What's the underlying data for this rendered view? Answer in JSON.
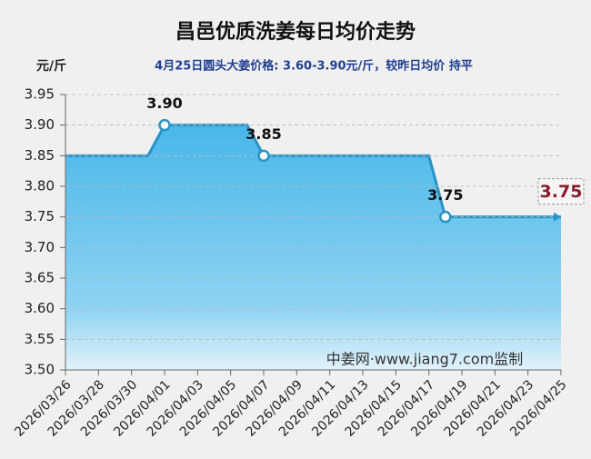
{
  "chart_data": {
    "type": "area",
    "title": "昌邑优质洗姜每日均价走势",
    "subtitle": "4月25日圆头大姜价格: 3.60-3.90元/斤，较昨日均价 持平",
    "y_label": "元/斤",
    "annotation": "中姜网·www.jiang7.com监制",
    "categories": [
      "2026/03/26",
      null,
      "2026/03/28",
      null,
      "2026/03/30",
      null,
      "2026/04/01",
      null,
      "2026/04/03",
      null,
      "2026/04/05",
      null,
      "2026/04/07",
      null,
      "2026/04/09",
      null,
      "2026/04/11",
      null,
      "2026/04/13",
      null,
      "2026/04/15",
      null,
      "2026/04/17",
      null,
      "2026/04/19",
      null,
      "2026/04/21",
      null,
      "2026/04/23",
      null,
      "2026/04/25"
    ],
    "values": [
      3.85,
      3.85,
      3.85,
      3.85,
      3.85,
      3.85,
      3.9,
      3.9,
      3.9,
      3.9,
      3.9,
      3.9,
      3.85,
      3.85,
      3.85,
      3.85,
      3.85,
      3.85,
      3.85,
      3.85,
      3.85,
      3.85,
      3.85,
      3.75,
      3.75,
      3.75,
      3.75,
      3.75,
      3.75,
      3.75,
      3.75
    ],
    "value_labels": [
      null,
      null,
      null,
      null,
      null,
      null,
      "3.90",
      null,
      null,
      null,
      null,
      null,
      "3.85",
      null,
      null,
      null,
      null,
      null,
      null,
      null,
      null,
      null,
      null,
      "3.75",
      null,
      null,
      null,
      null,
      null,
      null,
      "3.75"
    ],
    "color": "#2b93c4",
    "ylim": [
      3.5,
      3.95
    ],
    "yticks": [
      {
        "value": 3.5,
        "label": "3.50"
      },
      3.55,
      {
        "value": 3.6,
        "label": "3.60"
      },
      3.65,
      {
        "value": 3.7,
        "label": "3.70"
      },
      3.75,
      {
        "value": 3.8,
        "label": "3.80"
      },
      3.85,
      {
        "value": 3.9,
        "label": "3.90"
      },
      3.95
    ],
    "grid": true
  }
}
